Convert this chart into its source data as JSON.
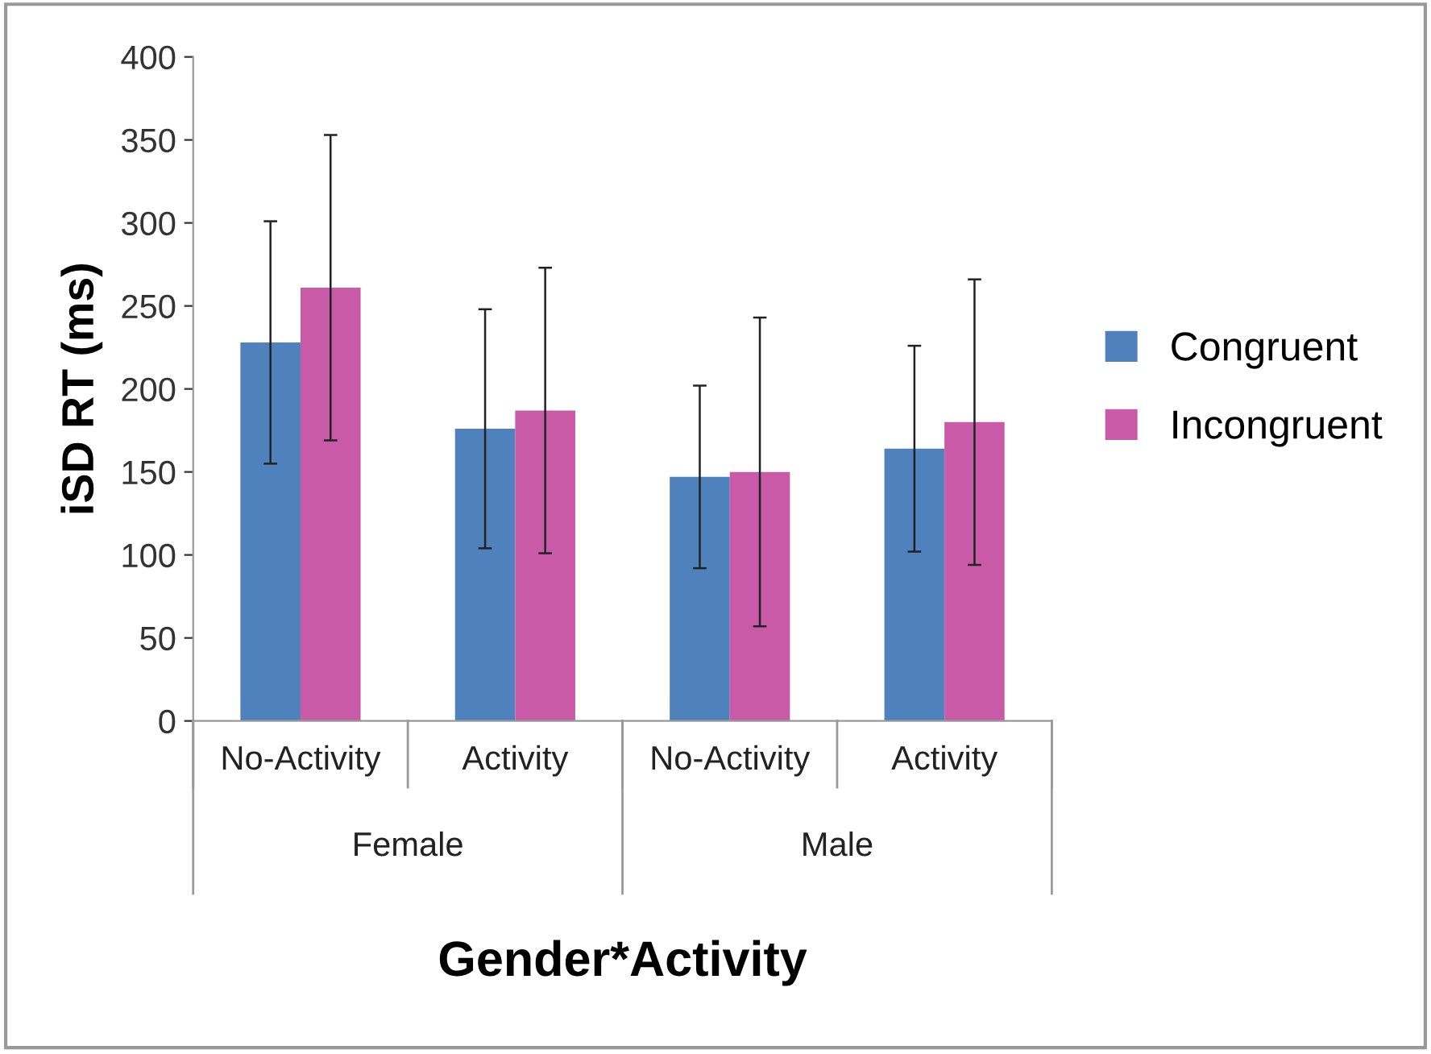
{
  "chart_data": {
    "type": "bar",
    "xlabel": "Gender*Activity",
    "ylabel": "iSD RT (ms)",
    "categories": [
      "No-Activity",
      "Activity",
      "No-Activity",
      "Activity"
    ],
    "annotations": [
      "Female",
      "Male"
    ],
    "series": [
      {
        "name": "Congruent",
        "color": "#4f81bd",
        "values": [
          228,
          176,
          147,
          164
        ],
        "errors": [
          73,
          72,
          55,
          62
        ]
      },
      {
        "name": "Incongruent",
        "color": "#c85aa8",
        "values": [
          261,
          187,
          150,
          180
        ],
        "errors": [
          92,
          86,
          93,
          86
        ]
      }
    ],
    "ylim": [
      0,
      400
    ],
    "yticks": [
      0,
      50,
      100,
      150,
      200,
      250,
      300,
      350,
      400
    ],
    "grid": false,
    "legend": "right"
  }
}
